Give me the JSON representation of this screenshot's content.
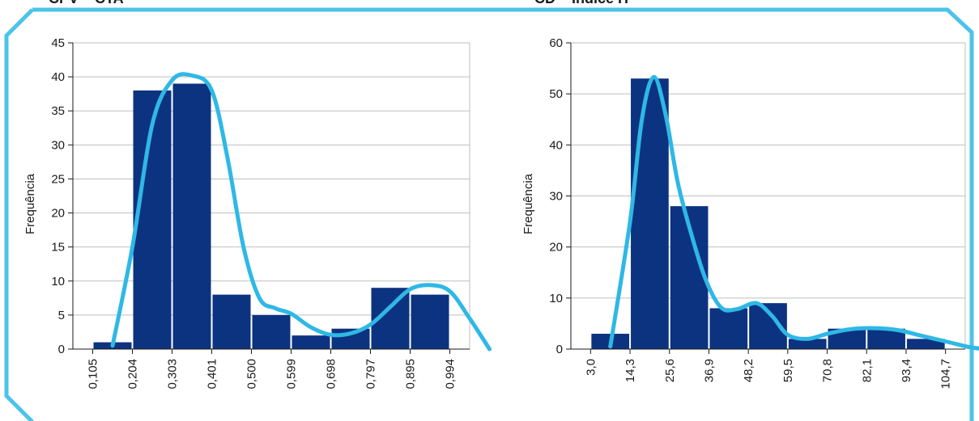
{
  "header": {
    "left_title": "CPV – CTA",
    "right_title": "CD – Índice H"
  },
  "colors": {
    "bar": "#0c3380",
    "curve": "#2fb8e5",
    "frame": "#4cc3ea",
    "grid": "#bfbfbf",
    "axis": "#1a1a1a"
  },
  "chart_data": [
    {
      "type": "bar",
      "ylabel": "Frequência",
      "ylim": [
        0,
        45
      ],
      "yticks": [
        0,
        5,
        10,
        15,
        20,
        25,
        30,
        35,
        40,
        45
      ],
      "x_tick_labels": [
        "0,105",
        "0,204",
        "0,303",
        "0,401",
        "0,500",
        "0,599",
        "0,698",
        "0,797",
        "0,895",
        "0,994"
      ],
      "values": [
        1,
        38,
        39,
        8,
        5,
        2,
        3,
        9,
        8
      ],
      "curve": [
        [
          0.5,
          0.5
        ],
        [
          1.0,
          15
        ],
        [
          1.5,
          33
        ],
        [
          2.0,
          39.5
        ],
        [
          2.5,
          40.2
        ],
        [
          3.0,
          38
        ],
        [
          3.4,
          28
        ],
        [
          3.8,
          15
        ],
        [
          4.2,
          7.5
        ],
        [
          4.6,
          6
        ],
        [
          5.0,
          5.2
        ],
        [
          5.5,
          3.2
        ],
        [
          6.0,
          2.1
        ],
        [
          6.5,
          2.3
        ],
        [
          7.0,
          3.6
        ],
        [
          7.5,
          6.2
        ],
        [
          8.0,
          8.8
        ],
        [
          8.5,
          9.4
        ],
        [
          9.0,
          8.5
        ],
        [
          9.5,
          4.5
        ],
        [
          10.0,
          0
        ]
      ],
      "grid": "horizontal"
    },
    {
      "type": "bar",
      "ylabel": "Frequência",
      "ylim": [
        0,
        60
      ],
      "yticks": [
        0,
        10,
        20,
        30,
        40,
        50,
        60
      ],
      "x_tick_labels": [
        "3,0",
        "14,3",
        "25,6",
        "36,9",
        "48,2",
        "59,5",
        "70,8",
        "82,1",
        "93,4",
        "104,7"
      ],
      "values": [
        3,
        53,
        28,
        8,
        9,
        2,
        4,
        4,
        2
      ],
      "curve": [
        [
          0.5,
          0.5
        ],
        [
          1.0,
          25
        ],
        [
          1.3,
          45
        ],
        [
          1.6,
          53.3
        ],
        [
          1.9,
          46
        ],
        [
          2.2,
          33
        ],
        [
          2.5,
          24
        ],
        [
          2.9,
          14
        ],
        [
          3.3,
          8.2
        ],
        [
          3.7,
          7.8
        ],
        [
          4.2,
          9.0
        ],
        [
          4.6,
          6.5
        ],
        [
          5.0,
          2.8
        ],
        [
          5.5,
          2.0
        ],
        [
          6.0,
          3.0
        ],
        [
          6.6,
          3.9
        ],
        [
          7.2,
          4.1
        ],
        [
          7.8,
          3.7
        ],
        [
          8.4,
          2.6
        ],
        [
          9.0,
          1.5
        ],
        [
          9.6,
          0.4
        ],
        [
          10.0,
          0
        ]
      ],
      "grid": "horizontal"
    }
  ]
}
